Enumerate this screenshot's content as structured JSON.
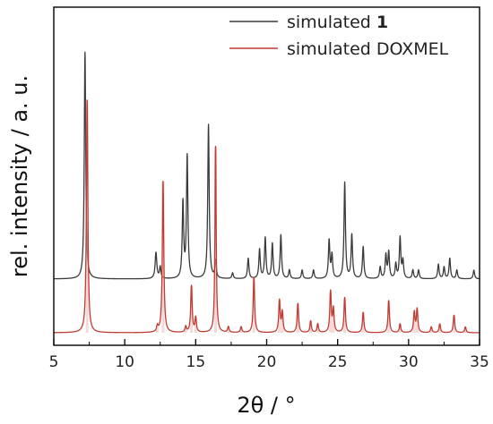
{
  "chart_data": {
    "type": "line",
    "xlabel": "2θ / °",
    "ylabel": "rel. intensity / a. u.",
    "xlim": [
      5,
      35
    ],
    "xticks": [
      5,
      10,
      15,
      20,
      25,
      30,
      35
    ],
    "yticks_shown": false,
    "grid": false,
    "legend_position": "top-right",
    "series": [
      {
        "name_prefix": "simulated ",
        "name_bold": "1",
        "color": "#3a3a3a",
        "baseline": 0.185,
        "peaks": [
          {
            "x": 7.2,
            "h": 0.78,
            "w": 0.06
          },
          {
            "x": 12.2,
            "h": 0.09,
            "w": 0.07
          },
          {
            "x": 12.5,
            "h": 0.04,
            "w": 0.06
          },
          {
            "x": 14.1,
            "h": 0.26,
            "w": 0.06
          },
          {
            "x": 14.4,
            "h": 0.42,
            "w": 0.06
          },
          {
            "x": 15.9,
            "h": 0.53,
            "w": 0.06
          },
          {
            "x": 16.4,
            "h": 0.06,
            "w": 0.06
          },
          {
            "x": 17.6,
            "h": 0.02,
            "w": 0.06
          },
          {
            "x": 18.7,
            "h": 0.07,
            "w": 0.06
          },
          {
            "x": 19.5,
            "h": 0.1,
            "w": 0.06
          },
          {
            "x": 19.9,
            "h": 0.14,
            "w": 0.06
          },
          {
            "x": 20.4,
            "h": 0.12,
            "w": 0.06
          },
          {
            "x": 21.0,
            "h": 0.15,
            "w": 0.06
          },
          {
            "x": 21.6,
            "h": 0.03,
            "w": 0.06
          },
          {
            "x": 22.5,
            "h": 0.03,
            "w": 0.06
          },
          {
            "x": 23.3,
            "h": 0.03,
            "w": 0.06
          },
          {
            "x": 24.4,
            "h": 0.13,
            "w": 0.06
          },
          {
            "x": 24.6,
            "h": 0.08,
            "w": 0.06
          },
          {
            "x": 25.5,
            "h": 0.33,
            "w": 0.06
          },
          {
            "x": 26.0,
            "h": 0.15,
            "w": 0.06
          },
          {
            "x": 26.8,
            "h": 0.11,
            "w": 0.06
          },
          {
            "x": 28.0,
            "h": 0.04,
            "w": 0.06
          },
          {
            "x": 28.4,
            "h": 0.08,
            "w": 0.06
          },
          {
            "x": 28.6,
            "h": 0.09,
            "w": 0.06
          },
          {
            "x": 29.1,
            "h": 0.05,
            "w": 0.06
          },
          {
            "x": 29.4,
            "h": 0.14,
            "w": 0.06
          },
          {
            "x": 29.6,
            "h": 0.06,
            "w": 0.06
          },
          {
            "x": 30.3,
            "h": 0.03,
            "w": 0.06
          },
          {
            "x": 30.7,
            "h": 0.03,
            "w": 0.06
          },
          {
            "x": 32.1,
            "h": 0.05,
            "w": 0.06
          },
          {
            "x": 32.5,
            "h": 0.04,
            "w": 0.06
          },
          {
            "x": 32.9,
            "h": 0.07,
            "w": 0.06
          },
          {
            "x": 33.4,
            "h": 0.03,
            "w": 0.06
          },
          {
            "x": 34.6,
            "h": 0.03,
            "w": 0.06
          }
        ]
      },
      {
        "name_prefix": "simulated DOXMEL",
        "name_bold": "",
        "color": "#c03c32",
        "baseline": 0.0,
        "peaks": [
          {
            "x": 7.35,
            "h": 0.8,
            "w": 0.06
          },
          {
            "x": 12.3,
            "h": 0.02,
            "w": 0.06
          },
          {
            "x": 12.7,
            "h": 0.52,
            "w": 0.06
          },
          {
            "x": 14.3,
            "h": 0.02,
            "w": 0.06
          },
          {
            "x": 14.7,
            "h": 0.16,
            "w": 0.06
          },
          {
            "x": 15.0,
            "h": 0.05,
            "w": 0.06
          },
          {
            "x": 16.4,
            "h": 0.64,
            "w": 0.05
          },
          {
            "x": 17.3,
            "h": 0.02,
            "w": 0.06
          },
          {
            "x": 18.2,
            "h": 0.02,
            "w": 0.06
          },
          {
            "x": 19.1,
            "h": 0.19,
            "w": 0.06
          },
          {
            "x": 20.9,
            "h": 0.11,
            "w": 0.06
          },
          {
            "x": 21.1,
            "h": 0.07,
            "w": 0.06
          },
          {
            "x": 22.2,
            "h": 0.1,
            "w": 0.06
          },
          {
            "x": 23.1,
            "h": 0.04,
            "w": 0.06
          },
          {
            "x": 23.6,
            "h": 0.03,
            "w": 0.06
          },
          {
            "x": 24.5,
            "h": 0.14,
            "w": 0.06
          },
          {
            "x": 24.7,
            "h": 0.08,
            "w": 0.06
          },
          {
            "x": 25.5,
            "h": 0.12,
            "w": 0.06
          },
          {
            "x": 26.8,
            "h": 0.07,
            "w": 0.06
          },
          {
            "x": 28.6,
            "h": 0.11,
            "w": 0.06
          },
          {
            "x": 29.4,
            "h": 0.03,
            "w": 0.06
          },
          {
            "x": 30.4,
            "h": 0.07,
            "w": 0.06
          },
          {
            "x": 30.6,
            "h": 0.08,
            "w": 0.06
          },
          {
            "x": 31.6,
            "h": 0.02,
            "w": 0.06
          },
          {
            "x": 32.2,
            "h": 0.03,
            "w": 0.06
          },
          {
            "x": 33.2,
            "h": 0.06,
            "w": 0.06
          },
          {
            "x": 34.0,
            "h": 0.02,
            "w": 0.06
          }
        ]
      }
    ]
  }
}
